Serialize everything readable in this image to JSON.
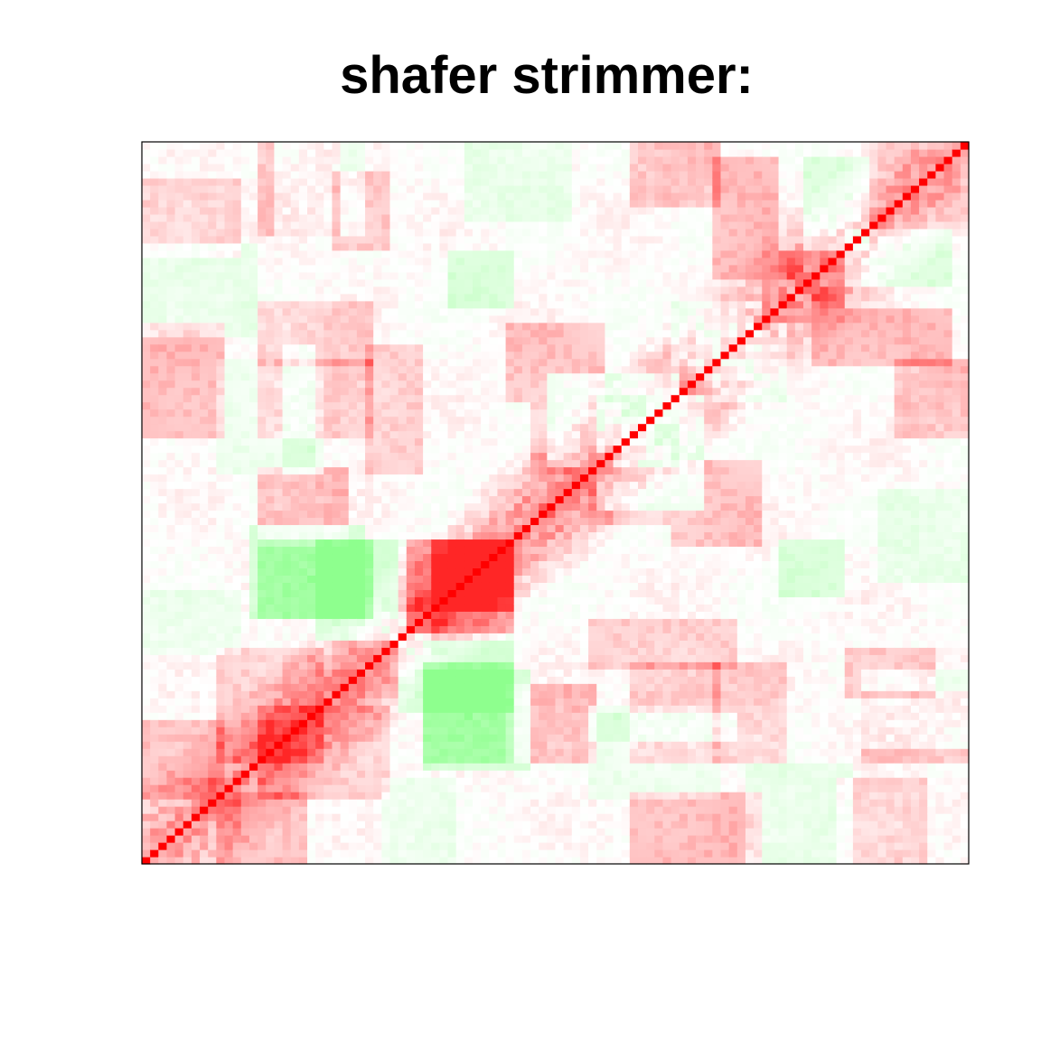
{
  "chart_data": {
    "type": "heatmap",
    "title": "shafer strimmer:",
    "xlabel": "",
    "ylabel": "",
    "n": 100,
    "value_range": [
      -1,
      1
    ],
    "diagonal_value": 1,
    "axes_shown": false,
    "color_scale": {
      "negative": "#88ff88",
      "zero": "#ffffff",
      "positive": "#ff0000"
    },
    "blocks": [
      {
        "rows": [
          1,
          10
        ],
        "cols": [
          10,
          20
        ],
        "value": 0.25
      },
      {
        "rows": [
          1,
          10
        ],
        "cols": [
          60,
          75
        ],
        "value": 0.3
      },
      {
        "rows": [
          10,
          22
        ],
        "cols": [
          15,
          30
        ],
        "value": 0.2
      },
      {
        "rows": [
          10,
          22
        ],
        "cols": [
          55,
          70
        ],
        "value": -0.15
      },
      {
        "rows": [
          14,
          27
        ],
        "cols": [
          35,
          47
        ],
        "value": -0.4
      },
      {
        "rows": [
          17,
          27
        ],
        "cols": [
          88,
          100
        ],
        "value": -0.2
      },
      {
        "rows": [
          18,
          27
        ],
        "cols": [
          55,
          72
        ],
        "value": -0.2
      },
      {
        "rows": [
          22,
          32
        ],
        "cols": [
          32,
          45
        ],
        "value": -0.4
      },
      {
        "rows": [
          22,
          34
        ],
        "cols": [
          55,
          72
        ],
        "value": 0.2
      },
      {
        "rows": [
          24,
          30
        ],
        "cols": [
          86,
          96
        ],
        "value": 0.25
      },
      {
        "rows": [
          30,
          38
        ],
        "cols": [
          1,
          12
        ],
        "value": -0.15
      },
      {
        "rows": [
          35,
          45
        ],
        "cols": [
          15,
          28
        ],
        "value": -0.5
      },
      {
        "rows": [
          36,
          45
        ],
        "cols": [
          32,
          45
        ],
        "value": 0.35
      },
      {
        "rows": [
          38,
          45
        ],
        "cols": [
          78,
          85
        ],
        "value": -0.35
      },
      {
        "rows": [
          45,
          55
        ],
        "cols": [
          15,
          25
        ],
        "value": 0.3
      },
      {
        "rows": [
          45,
          56
        ],
        "cols": [
          65,
          75
        ],
        "value": 0.25
      },
      {
        "rows": [
          48,
          58
        ],
        "cols": [
          55,
          64
        ],
        "value": 0.2
      },
      {
        "rows": [
          56,
          68
        ],
        "cols": [
          50,
          65
        ],
        "value": -0.3
      },
      {
        "rows": [
          60,
          70
        ],
        "cols": [
          15,
          28
        ],
        "value": 0.25
      },
      {
        "rows": [
          68,
          78
        ],
        "cols": [
          65,
          75
        ],
        "value": -0.2
      },
      {
        "rows": [
          70,
          78
        ],
        "cols": [
          15,
          28
        ],
        "value": 0.2
      },
      {
        "rows": [
          70,
          80
        ],
        "cols": [
          82,
          98
        ],
        "value": 0.3
      },
      {
        "rows": [
          74,
          86
        ],
        "cols": [
          1,
          14
        ],
        "value": -0.2
      },
      {
        "rows": [
          78,
          88
        ],
        "cols": [
          86,
          98
        ],
        "value": -0.3
      },
      {
        "rows": [
          85,
          95
        ],
        "cols": [
          1,
          12
        ],
        "value": 0.2
      },
      {
        "rows": [
          88,
          100
        ],
        "cols": [
          15,
          24
        ],
        "value": 0.25
      },
      {
        "rows": [
          90,
          100
        ],
        "cols": [
          40,
          52
        ],
        "value": -0.2
      },
      {
        "rows": [
          92,
          100
        ],
        "cols": [
          60,
          70
        ],
        "value": 0.25
      }
    ],
    "band_width": 12,
    "band_peak": 0.6
  }
}
